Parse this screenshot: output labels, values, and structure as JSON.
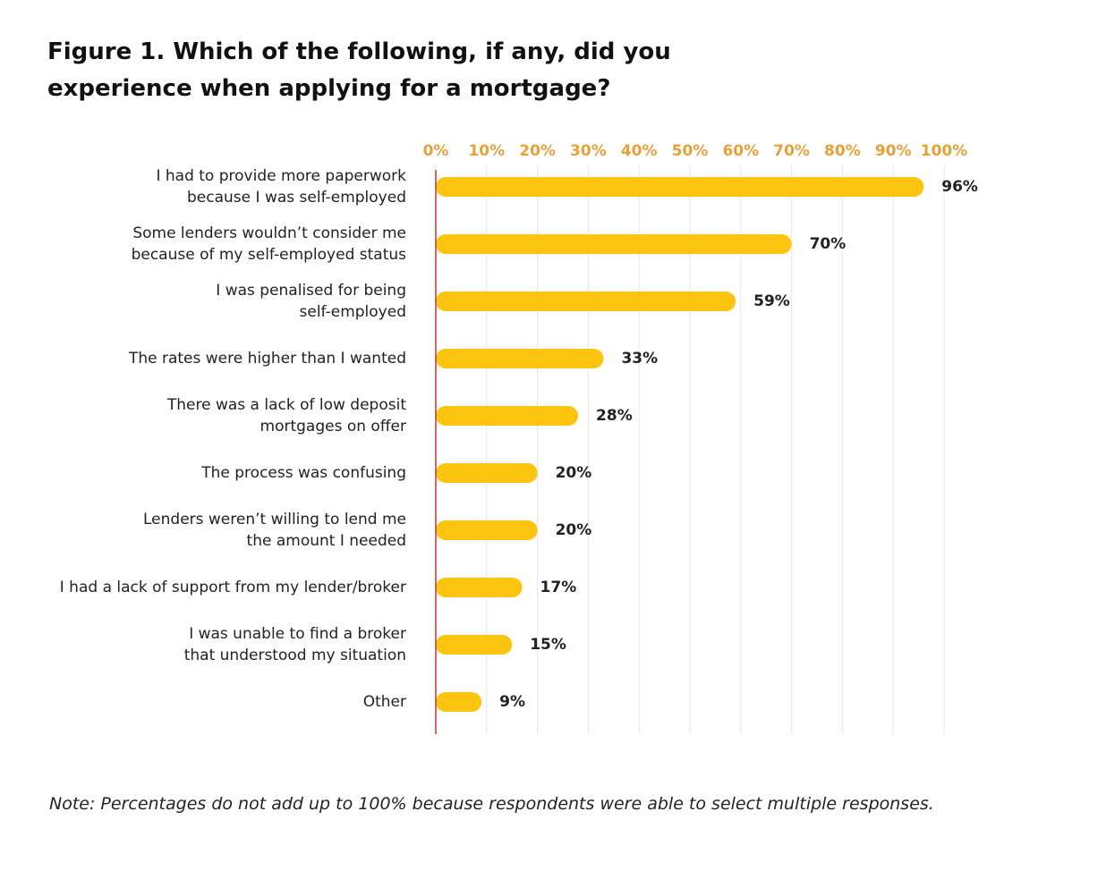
{
  "chart_data": {
    "type": "barh",
    "title": "Figure 1. Which of the following, if any, did you\nexperience when applying for a mortgage?",
    "categories": [
      "I had to provide more paperwork\nbecause I was self-employed",
      "Some lenders wouldn’t consider me\nbecause of my self-employed status",
      "I was penalised for being\nself-employed",
      "The rates were higher than I wanted",
      "There was a lack of low deposit\nmortgages on offer",
      "The process was confusing",
      "Lenders weren’t willing to lend me\nthe amount I needed",
      "I had a lack of support from my lender/broker",
      "I was unable to find a broker\nthat understood my situation",
      "Other"
    ],
    "values": [
      96,
      70,
      59,
      33,
      28,
      20,
      20,
      17,
      15,
      9
    ],
    "value_labels": [
      "96%",
      "70%",
      "59%",
      "33%",
      "28%",
      "20%",
      "20%",
      "17%",
      "15%",
      "9%"
    ],
    "color": "#fcc30f",
    "xlim": [
      0,
      100
    ],
    "xticks": [
      {
        "value": 0,
        "label": "0%"
      },
      {
        "value": 10,
        "label": "10%"
      },
      {
        "value": 20,
        "label": "20%"
      },
      {
        "value": 30,
        "label": "30%"
      },
      {
        "value": 40,
        "label": "40%"
      },
      {
        "value": 50,
        "label": "50%"
      },
      {
        "value": 60,
        "label": "60%"
      },
      {
        "value": 70,
        "label": "70%"
      },
      {
        "value": 80,
        "label": "80%"
      },
      {
        "value": 90,
        "label": "90%"
      },
      {
        "value": 100,
        "label": "100%"
      }
    ],
    "grid": true,
    "note": "Note: Percentages do not add up to 100% because respondents were able to select multiple responses."
  }
}
